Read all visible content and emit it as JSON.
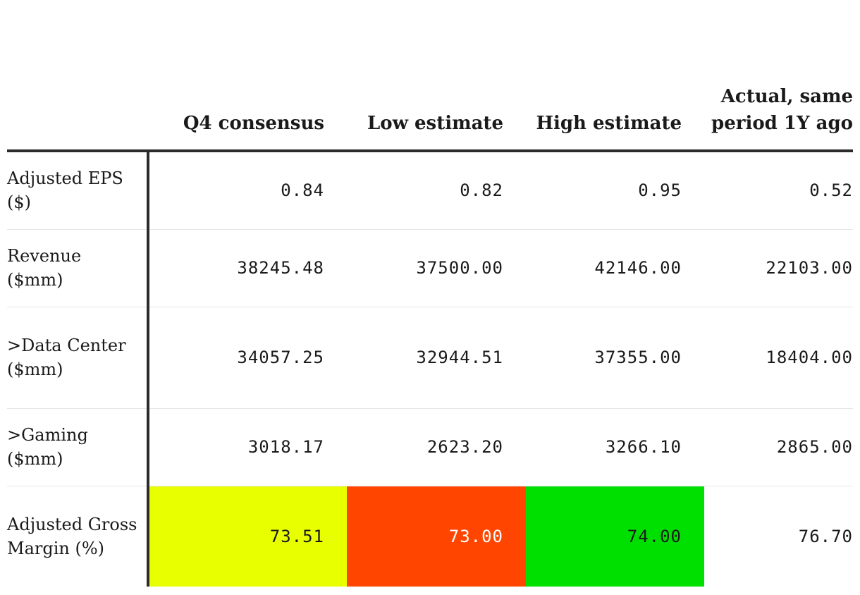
{
  "table": {
    "headers": [
      "",
      "Q4 consensus",
      "Low estimate",
      "High estimate",
      "Actual, same period 1Y ago"
    ],
    "rows": [
      {
        "label": "Adjusted EPS ($)",
        "values": [
          "0.84",
          "0.82",
          "0.95",
          "0.52"
        ]
      },
      {
        "label": "Revenue ($mm)",
        "values": [
          "38245.48",
          "37500.00",
          "42146.00",
          "22103.00"
        ]
      },
      {
        "label": ">Data Center ($mm)",
        "values": [
          "34057.25",
          "32944.51",
          "37355.00",
          "18404.00"
        ]
      },
      {
        "label": ">Gaming ($mm)",
        "values": [
          "3018.17",
          "2623.20",
          "3266.10",
          "2865.00"
        ]
      },
      {
        "label": "Adjusted Gross Margin (%)",
        "values": [
          "73.51",
          "73.00",
          "74.00",
          "76.70"
        ]
      }
    ],
    "highlight_colors": {
      "yellow": "#e8ff00",
      "red": "#ff4500",
      "green": "#00e000"
    }
  }
}
